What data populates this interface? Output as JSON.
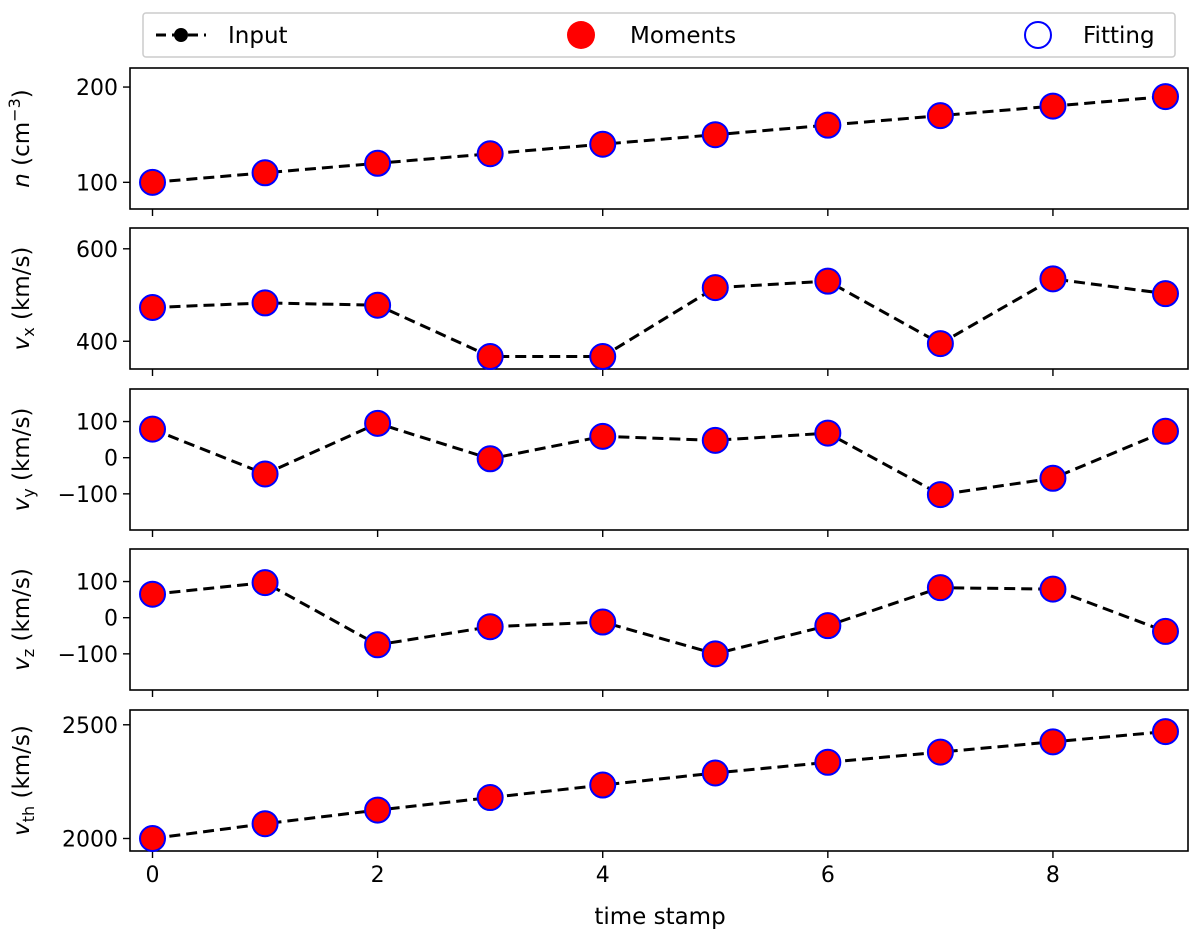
{
  "legend": {
    "entries": [
      {
        "label": "Input",
        "marker": "black-dot-dashed-line"
      },
      {
        "label": "Moments",
        "marker": "red-filled-circle"
      },
      {
        "label": "Fitting",
        "marker": "blue-open-circle"
      }
    ]
  },
  "colors": {
    "input_line": "#000000",
    "moments_fill": "#ff0000",
    "fitting_edge": "#0000ff"
  },
  "chart_data": [
    {
      "type": "line",
      "ylabel_var": "n",
      "ylabel_sub": "",
      "ylabel_unit": " (cm",
      "ylabel_sup": "−3",
      "ylabel_close": ")",
      "yticks": [
        100,
        200
      ],
      "ylim": [
        72,
        220
      ],
      "x": [
        0,
        1,
        2,
        3,
        4,
        5,
        6,
        7,
        8,
        9
      ],
      "series": [
        {
          "name": "Input",
          "values": [
            100,
            110,
            120,
            130,
            140,
            150,
            160,
            170,
            180,
            190
          ]
        },
        {
          "name": "Moments",
          "values": [
            100,
            110,
            120,
            130,
            140,
            150,
            160,
            170,
            180,
            190
          ]
        },
        {
          "name": "Fitting",
          "values": [
            100,
            110,
            120,
            130,
            140,
            150,
            160,
            170,
            180,
            190
          ]
        }
      ]
    },
    {
      "type": "line",
      "ylabel_var": "v",
      "ylabel_sub": "x",
      "ylabel_unit": " (km/s)",
      "ylabel_sup": "",
      "ylabel_close": "",
      "yticks": [
        400,
        600
      ],
      "ylim": [
        340,
        645
      ],
      "x": [
        0,
        1,
        2,
        3,
        4,
        5,
        6,
        7,
        8,
        9
      ],
      "series": [
        {
          "name": "Input",
          "values": [
            473,
            483,
            478,
            367,
            367,
            516,
            530,
            395,
            535,
            503
          ]
        },
        {
          "name": "Moments",
          "values": [
            473,
            483,
            478,
            367,
            367,
            516,
            530,
            395,
            535,
            503
          ]
        },
        {
          "name": "Fitting",
          "values": [
            473,
            483,
            478,
            367,
            367,
            516,
            530,
            395,
            535,
            503
          ]
        }
      ]
    },
    {
      "type": "line",
      "ylabel_var": "v",
      "ylabel_sub": "y",
      "ylabel_unit": " (km/s)",
      "ylabel_sup": "",
      "ylabel_close": "",
      "yticks": [
        -100,
        0,
        100
      ],
      "ylim": [
        -200,
        190
      ],
      "x": [
        0,
        1,
        2,
        3,
        4,
        5,
        6,
        7,
        8,
        9
      ],
      "series": [
        {
          "name": "Input",
          "values": [
            79,
            -45,
            95,
            -3,
            59,
            48,
            68,
            -102,
            -57,
            73
          ]
        },
        {
          "name": "Moments",
          "values": [
            79,
            -45,
            95,
            -3,
            59,
            48,
            68,
            -102,
            -57,
            73
          ]
        },
        {
          "name": "Fitting",
          "values": [
            79,
            -45,
            95,
            -3,
            59,
            48,
            68,
            -102,
            -57,
            73
          ]
        }
      ]
    },
    {
      "type": "line",
      "ylabel_var": "v",
      "ylabel_sub": "z",
      "ylabel_unit": " (km/s)",
      "ylabel_sup": "",
      "ylabel_close": "",
      "yticks": [
        -100,
        0,
        100
      ],
      "ylim": [
        -200,
        190
      ],
      "x": [
        0,
        1,
        2,
        3,
        4,
        5,
        6,
        7,
        8,
        9
      ],
      "series": [
        {
          "name": "Input",
          "values": [
            65,
            97,
            -75,
            -25,
            -12,
            -100,
            -22,
            83,
            79,
            -38
          ]
        },
        {
          "name": "Moments",
          "values": [
            65,
            97,
            -75,
            -25,
            -12,
            -100,
            -22,
            83,
            79,
            -38
          ]
        },
        {
          "name": "Fitting",
          "values": [
            65,
            97,
            -75,
            -25,
            -12,
            -100,
            -22,
            83,
            79,
            -38
          ]
        }
      ]
    },
    {
      "type": "line",
      "ylabel_var": "v",
      "ylabel_sub": "th",
      "ylabel_unit": " (km/s)",
      "ylabel_sup": "",
      "ylabel_close": "",
      "yticks": [
        2000,
        2500
      ],
      "ylim": [
        1945,
        2565
      ],
      "xlabel": "time stamp",
      "xticks": [
        0,
        2,
        4,
        6,
        8
      ],
      "x": [
        0,
        1,
        2,
        3,
        4,
        5,
        6,
        7,
        8,
        9
      ],
      "series": [
        {
          "name": "Input",
          "values": [
            2000,
            2065,
            2125,
            2180,
            2235,
            2288,
            2335,
            2380,
            2425,
            2470
          ]
        },
        {
          "name": "Moments",
          "values": [
            2000,
            2065,
            2125,
            2180,
            2235,
            2288,
            2335,
            2380,
            2425,
            2470
          ]
        },
        {
          "name": "Fitting",
          "values": [
            2000,
            2065,
            2125,
            2180,
            2235,
            2288,
            2335,
            2380,
            2425,
            2470
          ]
        }
      ]
    }
  ]
}
